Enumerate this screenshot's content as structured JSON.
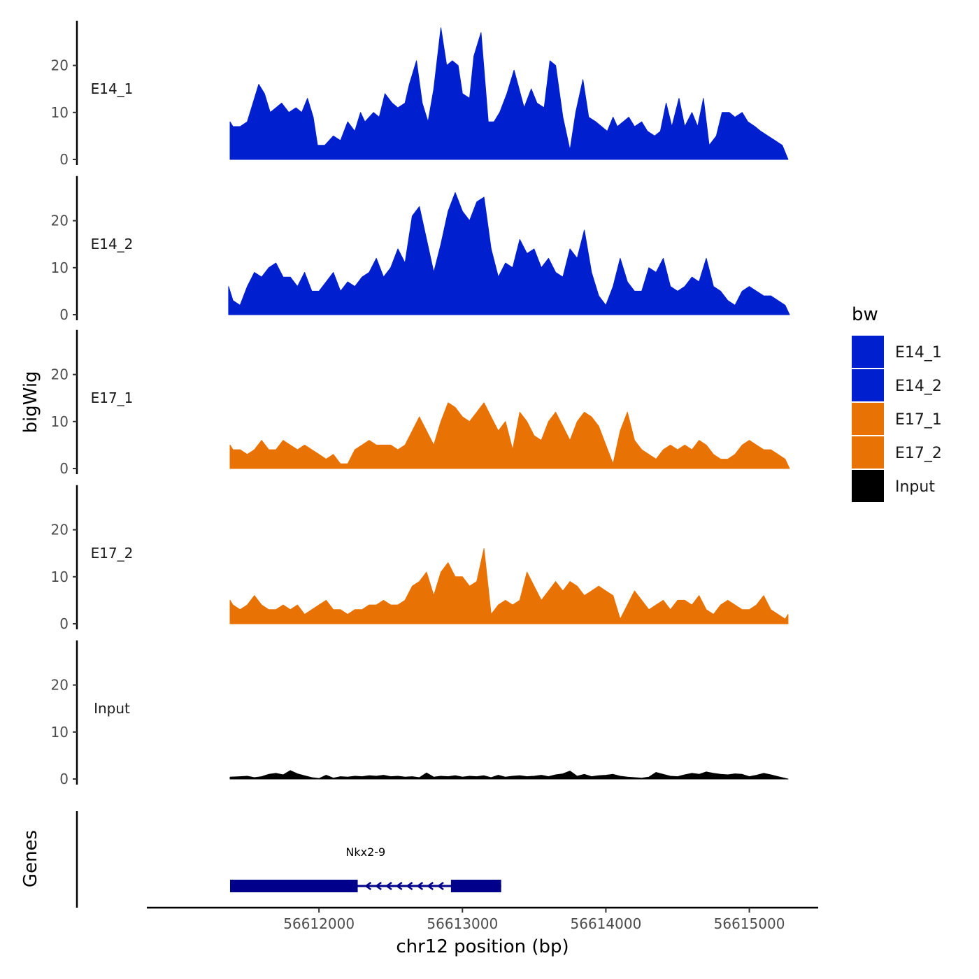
{
  "chart_data": {
    "type": "area",
    "region": "chr12",
    "xlabel": "chr12 position (bp)",
    "ylabel": "bigWig",
    "genes_label": "Genes",
    "xlim": [
      56610800,
      56615480
    ],
    "x_ticks": [
      56612000,
      56613000,
      56614000,
      56615000
    ],
    "x_tick_labels": [
      "56612000",
      "56613000",
      "56614000",
      "56615000"
    ],
    "ylim": [
      0,
      29.5
    ],
    "y_ticks": [
      0,
      10,
      20
    ],
    "y_tick_labels": [
      "0",
      "10",
      "20"
    ],
    "legend": {
      "title": "bw",
      "entries": [
        {
          "label": "E14_1",
          "color": "#0020d0"
        },
        {
          "label": "E14_2",
          "color": "#0020d0"
        },
        {
          "label": "E17_1",
          "color": "#e87304"
        },
        {
          "label": "E17_2",
          "color": "#e87304"
        },
        {
          "label": "Input",
          "color": "#000000"
        }
      ]
    },
    "series": [
      {
        "name": "E14_1",
        "color": "#0020d0",
        "x": [
          56611380,
          56611400,
          56611450,
          56611500,
          56611540,
          56611580,
          56611620,
          56611660,
          56611700,
          56611740,
          56611790,
          56611840,
          56611880,
          56611920,
          56611960,
          56611990,
          56612040,
          56612100,
          56612150,
          56612200,
          56612250,
          56612290,
          56612320,
          56612380,
          56612420,
          56612460,
          56612510,
          56612550,
          56612600,
          56612630,
          56612680,
          56612720,
          56612760,
          56612800,
          56612850,
          56612890,
          56612930,
          56612970,
          56613000,
          56613050,
          56613080,
          56613130,
          56613180,
          56613220,
          56613260,
          56613310,
          56613360,
          56613430,
          56613480,
          56613520,
          56613570,
          56613610,
          56613650,
          56613700,
          56613750,
          56613790,
          56613840,
          56613880,
          56613930,
          56613970,
          56614010,
          56614050,
          56614080,
          56614120,
          56614160,
          56614200,
          56614250,
          56614290,
          56614340,
          56614380,
          56614420,
          56614460,
          56614510,
          56614550,
          56614600,
          56614640,
          56614680,
          56614720,
          56614770,
          56614810,
          56614860,
          56614900,
          56614950,
          56614990,
          56615040,
          56615080,
          56615130,
          56615180,
          56615230,
          56615270
        ],
        "values": [
          8,
          7,
          7,
          8,
          12,
          16,
          14,
          10,
          11,
          12,
          10,
          11,
          10,
          13,
          9,
          3,
          3,
          5,
          4,
          8,
          6,
          10,
          8,
          10,
          9,
          14,
          12,
          11,
          12,
          16,
          21,
          12,
          8,
          15,
          28,
          20,
          21,
          20,
          14,
          13,
          22,
          27,
          8,
          8,
          10,
          14,
          19,
          11,
          15,
          12,
          11,
          21,
          20,
          9,
          2,
          10,
          17,
          9,
          8,
          7,
          6,
          9,
          7,
          8,
          9,
          7,
          8,
          6,
          5,
          6,
          12,
          7,
          13,
          7,
          10,
          7,
          13,
          3,
          5,
          10,
          10,
          9,
          10,
          8,
          7,
          6,
          5,
          4,
          3,
          0
        ]
      },
      {
        "name": "E14_2",
        "color": "#0020d0",
        "x": [
          56611370,
          56611400,
          56611450,
          56611500,
          56611550,
          56611600,
          56611650,
          56611700,
          56611750,
          56611800,
          56611850,
          56611900,
          56611950,
          56612000,
          56612050,
          56612100,
          56612150,
          56612200,
          56612250,
          56612300,
          56612350,
          56612400,
          56612450,
          56612500,
          56612550,
          56612600,
          56612650,
          56612700,
          56612750,
          56612800,
          56612850,
          56612900,
          56612950,
          56613000,
          56613050,
          56613100,
          56613150,
          56613200,
          56613250,
          56613300,
          56613350,
          56613400,
          56613450,
          56613500,
          56613550,
          56613600,
          56613650,
          56613700,
          56613750,
          56613800,
          56613850,
          56613900,
          56613950,
          56614000,
          56614050,
          56614100,
          56614150,
          56614200,
          56614250,
          56614300,
          56614350,
          56614400,
          56614450,
          56614500,
          56614550,
          56614600,
          56614650,
          56614700,
          56614750,
          56614800,
          56614850,
          56614900,
          56614950,
          56615000,
          56615050,
          56615100,
          56615150,
          56615200,
          56615250,
          56615280
        ],
        "values": [
          6,
          3,
          2,
          6,
          9,
          8,
          10,
          11,
          8,
          8,
          6,
          9,
          5,
          5,
          7,
          9,
          5,
          7,
          6,
          8,
          9,
          12,
          8,
          10,
          14,
          11,
          21,
          23,
          16,
          9,
          15,
          22,
          26,
          22,
          20,
          24,
          25,
          14,
          8,
          11,
          10,
          16,
          13,
          14,
          10,
          12,
          9,
          8,
          14,
          12,
          18,
          9,
          4,
          2,
          6,
          12,
          7,
          5,
          5,
          10,
          9,
          12,
          6,
          5,
          6,
          8,
          7,
          12,
          6,
          5,
          3,
          2,
          5,
          6,
          5,
          4,
          4,
          3,
          2,
          0
        ]
      },
      {
        "name": "E17_1",
        "color": "#e87304",
        "x": [
          56611380,
          56611400,
          56611450,
          56611500,
          56611550,
          56611600,
          56611650,
          56611700,
          56611750,
          56611800,
          56611850,
          56611900,
          56611950,
          56612000,
          56612050,
          56612100,
          56612150,
          56612200,
          56612250,
          56612300,
          56612350,
          56612400,
          56612450,
          56612500,
          56612550,
          56612600,
          56612650,
          56612700,
          56612750,
          56612800,
          56612850,
          56612900,
          56612950,
          56613000,
          56613050,
          56613100,
          56613150,
          56613200,
          56613250,
          56613300,
          56613350,
          56613400,
          56613450,
          56613500,
          56613550,
          56613600,
          56613650,
          56613700,
          56613750,
          56613800,
          56613850,
          56613900,
          56613950,
          56614000,
          56614050,
          56614100,
          56614150,
          56614200,
          56614250,
          56614300,
          56614350,
          56614400,
          56614450,
          56614500,
          56614550,
          56614600,
          56614650,
          56614700,
          56614750,
          56614800,
          56614850,
          56614900,
          56614950,
          56615000,
          56615050,
          56615100,
          56615150,
          56615200,
          56615250,
          56615280
        ],
        "values": [
          5,
          4,
          4,
          3,
          4,
          6,
          4,
          4,
          6,
          5,
          4,
          5,
          4,
          3,
          2,
          3,
          1,
          1,
          4,
          5,
          6,
          5,
          5,
          5,
          4,
          5,
          8,
          11,
          8,
          5,
          10,
          14,
          13,
          11,
          10,
          12,
          14,
          11,
          8,
          10,
          4,
          12,
          10,
          7,
          6,
          10,
          12,
          9,
          6,
          10,
          12,
          11,
          9,
          5,
          1,
          8,
          12,
          6,
          4,
          3,
          2,
          4,
          5,
          4,
          5,
          4,
          6,
          5,
          3,
          2,
          2,
          3,
          5,
          6,
          5,
          4,
          4,
          3,
          2,
          0
        ]
      },
      {
        "name": "E17_2",
        "color": "#e87304",
        "x": [
          56611380,
          56611400,
          56611450,
          56611500,
          56611550,
          56611600,
          56611650,
          56611700,
          56611750,
          56611800,
          56611850,
          56611900,
          56611950,
          56612000,
          56612050,
          56612100,
          56612150,
          56612200,
          56612250,
          56612300,
          56612350,
          56612400,
          56612450,
          56612500,
          56612550,
          56612600,
          56612650,
          56612700,
          56612750,
          56612800,
          56612850,
          56612900,
          56612950,
          56613000,
          56613050,
          56613100,
          56613150,
          56613200,
          56613250,
          56613300,
          56613350,
          56613400,
          56613450,
          56613500,
          56613550,
          56613600,
          56613650,
          56613700,
          56613750,
          56613800,
          56613850,
          56613900,
          56613950,
          56614000,
          56614050,
          56614100,
          56614150,
          56614200,
          56614250,
          56614300,
          56614350,
          56614400,
          56614450,
          56614500,
          56614550,
          56614600,
          56614650,
          56614700,
          56614750,
          56614800,
          56614850,
          56614900,
          56614950,
          56615000,
          56615050,
          56615100,
          56615150,
          56615200,
          56615250,
          56615270
        ],
        "values": [
          5,
          4,
          3,
          4,
          6,
          4,
          3,
          3,
          4,
          3,
          4,
          2,
          3,
          4,
          5,
          3,
          3,
          2,
          3,
          3,
          4,
          4,
          5,
          4,
          4,
          5,
          8,
          9,
          11,
          6,
          11,
          13,
          10,
          10,
          8,
          9,
          16,
          2,
          4,
          5,
          4,
          5,
          11,
          8,
          5,
          7,
          9,
          7,
          9,
          8,
          6,
          7,
          8,
          7,
          6,
          1,
          4,
          7,
          5,
          3,
          4,
          5,
          3,
          5,
          5,
          4,
          6,
          3,
          2,
          4,
          5,
          4,
          3,
          3,
          4,
          6,
          3,
          2,
          1,
          2
        ]
      },
      {
        "name": "Input",
        "color": "#000000",
        "x": [
          56611380,
          56611450,
          56611500,
          56611550,
          56611600,
          56611650,
          56611700,
          56611750,
          56611800,
          56611850,
          56611900,
          56611950,
          56612000,
          56612050,
          56612100,
          56612150,
          56612200,
          56612250,
          56612300,
          56612350,
          56612400,
          56612450,
          56612500,
          56612550,
          56612600,
          56612650,
          56612700,
          56612750,
          56612800,
          56612850,
          56612900,
          56612950,
          56613000,
          56613050,
          56613100,
          56613150,
          56613200,
          56613250,
          56613300,
          56613350,
          56613400,
          56613450,
          56613500,
          56613550,
          56613600,
          56613650,
          56613700,
          56613750,
          56613800,
          56613850,
          56613900,
          56613950,
          56614000,
          56614050,
          56614100,
          56614150,
          56614200,
          56614250,
          56614300,
          56614350,
          56614400,
          56614450,
          56614500,
          56614550,
          56614600,
          56614650,
          56614700,
          56614750,
          56614800,
          56614850,
          56614900,
          56614950,
          56615000,
          56615050,
          56615100,
          56615150,
          56615200,
          56615270
        ],
        "values": [
          0.4,
          0.5,
          0.6,
          0.3,
          0.5,
          1.0,
          1.2,
          0.9,
          1.8,
          1.1,
          0.7,
          0.3,
          0.1,
          0.8,
          0.2,
          0.5,
          0.4,
          0.6,
          0.5,
          0.7,
          0.6,
          0.8,
          0.5,
          0.6,
          0.4,
          0.5,
          0.3,
          1.3,
          0.4,
          0.6,
          0.5,
          0.7,
          0.4,
          0.6,
          0.5,
          0.7,
          0.3,
          0.8,
          0.4,
          0.6,
          0.7,
          0.5,
          0.6,
          0.8,
          0.5,
          0.9,
          1.1,
          1.7,
          0.6,
          1.0,
          0.5,
          0.7,
          0.8,
          1.0,
          0.6,
          0.4,
          0.3,
          0.2,
          0.4,
          1.4,
          1.0,
          0.6,
          0.5,
          0.9,
          1.2,
          1.0,
          1.5,
          1.2,
          1.0,
          0.9,
          1.1,
          1.0,
          0.5,
          0.8,
          1.2,
          0.9,
          0.5,
          0
        ]
      }
    ],
    "gene": {
      "name": "Nkx2-9",
      "start": 56611380,
      "end": 56613270,
      "strand": "-",
      "exons": [
        [
          56611380,
          56612270
        ],
        [
          56612920,
          56613270
        ]
      ],
      "color": "#00008b"
    }
  }
}
